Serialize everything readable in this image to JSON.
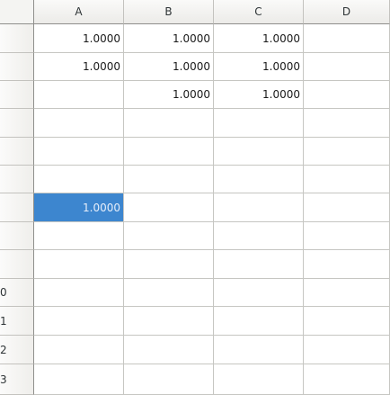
{
  "columns": [
    "A",
    "B",
    "C",
    "D"
  ],
  "rows": [
    {
      "header": "",
      "cells": [
        "1.0000",
        "1.0000",
        "1.0000",
        ""
      ]
    },
    {
      "header": "",
      "cells": [
        "1.0000",
        "1.0000",
        "1.0000",
        ""
      ]
    },
    {
      "header": "",
      "cells": [
        "",
        "1.0000",
        "1.0000",
        ""
      ]
    },
    {
      "header": "",
      "cells": [
        "",
        "",
        "",
        ""
      ]
    },
    {
      "header": "",
      "cells": [
        "",
        "",
        "",
        ""
      ]
    },
    {
      "header": "",
      "cells": [
        "",
        "",
        "",
        ""
      ]
    },
    {
      "header": "",
      "cells": [
        "1.0000",
        "",
        "",
        ""
      ]
    },
    {
      "header": "",
      "cells": [
        "",
        "",
        "",
        ""
      ]
    },
    {
      "header": "",
      "cells": [
        "",
        "",
        "",
        ""
      ]
    },
    {
      "header": "0",
      "cells": [
        "",
        "",
        "",
        ""
      ]
    },
    {
      "header": "1",
      "cells": [
        "",
        "",
        "",
        ""
      ]
    },
    {
      "header": "2",
      "cells": [
        "",
        "",
        "",
        ""
      ]
    },
    {
      "header": "3",
      "cells": [
        "",
        "",
        "",
        ""
      ]
    }
  ],
  "selection": {
    "color": "#3d86cf"
  },
  "colors": {
    "grid": "#c6c6c2",
    "header_border": "#8f8f8c"
  }
}
